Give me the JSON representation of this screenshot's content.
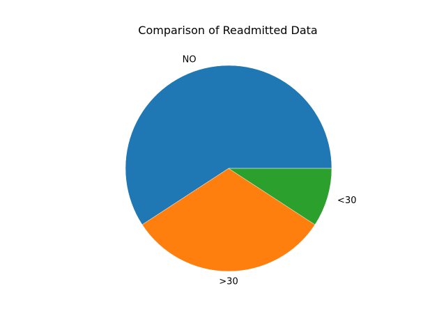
{
  "chart_data": {
    "type": "pie",
    "title": "Comparison of Readmitted Data",
    "labels": [
      "NO",
      ">30",
      "<30"
    ],
    "values": [
      59.2,
      31.6,
      9.2
    ],
    "colors": [
      "#1f77b4",
      "#ff7f0e",
      "#2ca02c"
    ],
    "start_angle_deg": 0,
    "direction": "counterclockwise",
    "legend": "none"
  }
}
